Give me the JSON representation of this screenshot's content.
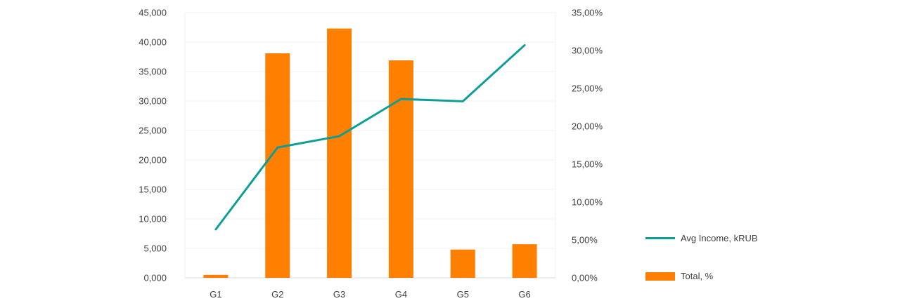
{
  "colors": {
    "bar": "#ff7f00",
    "line": "#0f9e97",
    "grid": "#f0f0f0",
    "axis": "#d9d9d9"
  },
  "chart_data": {
    "type": "bar+line",
    "categories": [
      "G1",
      "G2",
      "G3",
      "G4",
      "G5",
      "G6"
    ],
    "left_axis": {
      "ticks": [
        "0,000",
        "5,000",
        "10,000",
        "15,000",
        "20,000",
        "25,000",
        "30,000",
        "35,000",
        "40,000",
        "45,000"
      ],
      "ylim": [
        0,
        45000
      ]
    },
    "right_axis": {
      "ticks": [
        "0,00%",
        "5,00%",
        "10,00%",
        "15,00%",
        "20,00%",
        "25,00%",
        "30,00%",
        "35,00%"
      ],
      "ylim": [
        0,
        35
      ]
    },
    "series": [
      {
        "name": "Total, %",
        "type": "bar",
        "axis": "left",
        "values": [
          500,
          38100,
          42300,
          36900,
          4800,
          5700
        ]
      },
      {
        "name": "Avg Income, kRUB",
        "type": "line",
        "axis": "right",
        "values": [
          6.4,
          17.2,
          18.7,
          23.6,
          23.3,
          30.7
        ]
      }
    ],
    "legend_position": "right",
    "grid": true
  }
}
